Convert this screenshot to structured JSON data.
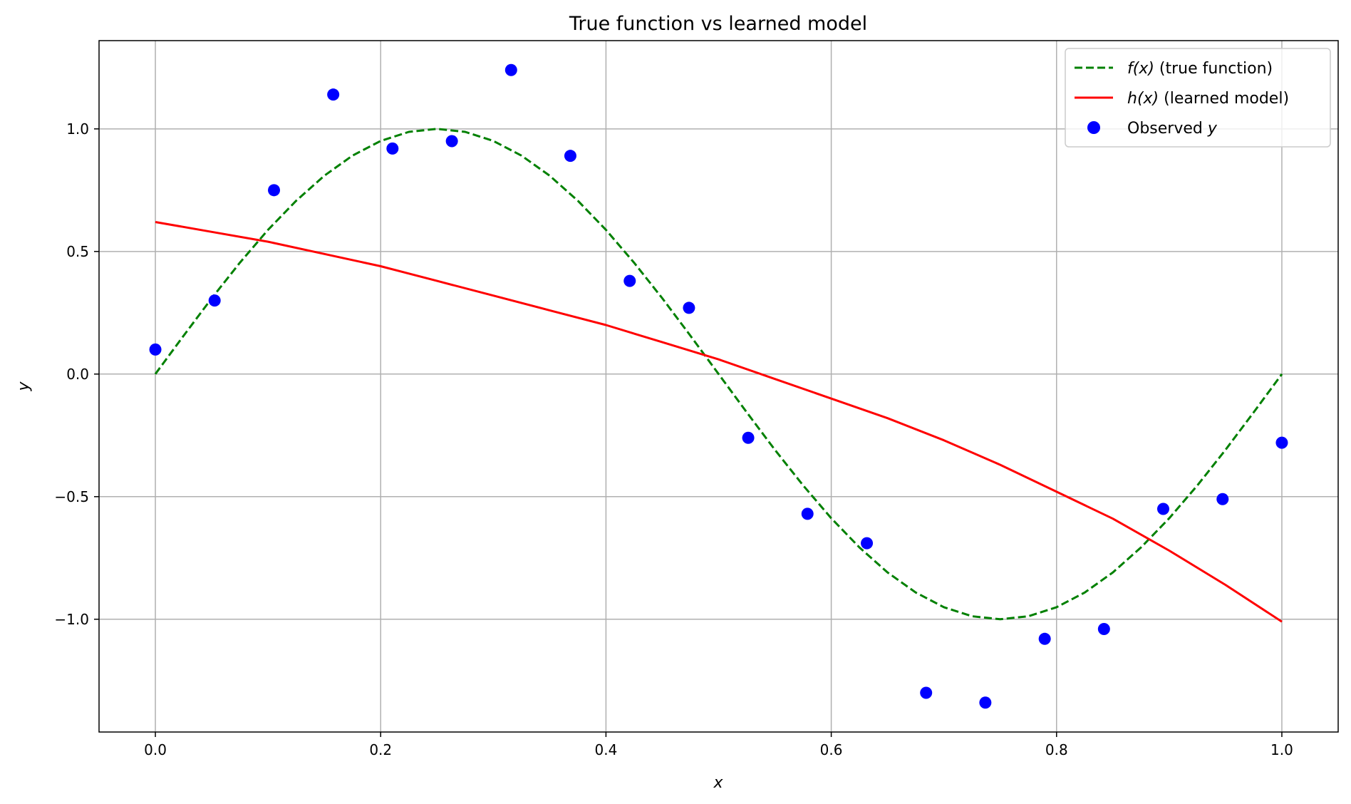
{
  "chart_data": {
    "type": "line",
    "title": "True function vs learned model",
    "xlabel": "x",
    "ylabel": "y",
    "xlim": [
      -0.05,
      1.05
    ],
    "ylim": [
      -1.46,
      1.36
    ],
    "xticks": [
      0.0,
      0.2,
      0.4,
      0.6,
      0.8,
      1.0
    ],
    "xtick_labels": [
      "0.0",
      "0.2",
      "0.4",
      "0.6",
      "0.8",
      "1.0"
    ],
    "yticks": [
      -1.0,
      -0.5,
      0.0,
      0.5,
      1.0
    ],
    "ytick_labels": [
      "−1.0",
      "−0.5",
      "0.0",
      "0.5",
      "1.0"
    ],
    "grid": true,
    "legend_position": "top-right",
    "series": [
      {
        "name_prefix": "f(x)",
        "name_suffix": " (true function)",
        "kind": "line",
        "style": "dashed",
        "color": "#008000",
        "x": [
          0.0,
          0.025,
          0.05,
          0.075,
          0.1,
          0.125,
          0.15,
          0.175,
          0.2,
          0.225,
          0.25,
          0.275,
          0.3,
          0.325,
          0.35,
          0.375,
          0.4,
          0.425,
          0.45,
          0.475,
          0.5,
          0.525,
          0.55,
          0.575,
          0.6,
          0.625,
          0.65,
          0.675,
          0.7,
          0.725,
          0.75,
          0.775,
          0.8,
          0.825,
          0.85,
          0.875,
          0.9,
          0.925,
          0.95,
          0.975,
          1.0
        ],
        "y": [
          0.0,
          0.156,
          0.309,
          0.454,
          0.588,
          0.707,
          0.809,
          0.891,
          0.951,
          0.988,
          1.0,
          0.988,
          0.951,
          0.891,
          0.809,
          0.707,
          0.588,
          0.454,
          0.309,
          0.156,
          0.0,
          -0.156,
          -0.309,
          -0.454,
          -0.588,
          -0.707,
          -0.809,
          -0.891,
          -0.951,
          -0.988,
          -1.0,
          -0.988,
          -0.951,
          -0.891,
          -0.809,
          -0.707,
          -0.588,
          -0.454,
          -0.309,
          -0.156,
          0.0
        ]
      },
      {
        "name_prefix": "h(x)",
        "name_suffix": " (learned model)",
        "kind": "line",
        "style": "solid",
        "color": "#ff0000",
        "x": [
          0.0,
          0.05,
          0.1,
          0.15,
          0.2,
          0.25,
          0.3,
          0.35,
          0.4,
          0.45,
          0.5,
          0.55,
          0.6,
          0.65,
          0.7,
          0.75,
          0.8,
          0.85,
          0.9,
          0.95,
          1.0
        ],
        "y": [
          0.62,
          0.58,
          0.54,
          0.49,
          0.44,
          0.38,
          0.32,
          0.26,
          0.2,
          0.13,
          0.06,
          -0.02,
          -0.1,
          -0.18,
          -0.27,
          -0.37,
          -0.48,
          -0.59,
          -0.72,
          -0.86,
          -1.01
        ]
      },
      {
        "name_prefix": "Observed ",
        "name_suffix": "y",
        "kind": "scatter",
        "color": "#0000ff",
        "x": [
          0.0,
          0.0526,
          0.1053,
          0.1579,
          0.2105,
          0.2632,
          0.3158,
          0.3684,
          0.4211,
          0.4737,
          0.5263,
          0.5789,
          0.6316,
          0.6842,
          0.7368,
          0.7895,
          0.8421,
          0.8947,
          0.9474,
          1.0
        ],
        "y": [
          0.1,
          0.3,
          0.75,
          1.14,
          0.92,
          0.95,
          1.24,
          0.89,
          0.38,
          0.27,
          -0.26,
          -0.57,
          -0.69,
          -1.3,
          -1.34,
          -1.08,
          -1.04,
          -0.55,
          -0.51,
          -0.28
        ]
      }
    ]
  }
}
